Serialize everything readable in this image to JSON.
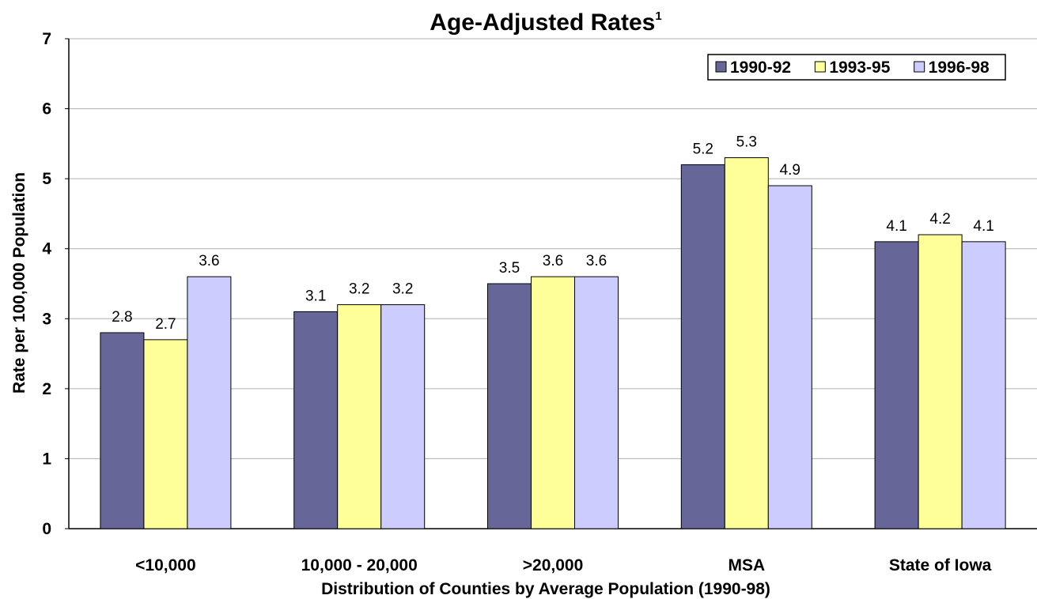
{
  "chart_data": {
    "type": "bar",
    "title": "Age-Adjusted Rates",
    "title_superscript": "1",
    "xlabel": "Distribution of Counties by Average Population (1990-98)",
    "ylabel": "Rate per 100,000 Population",
    "ylim": [
      0,
      7
    ],
    "yticks": [
      "0",
      "1",
      "2",
      "3",
      "4",
      "5",
      "6",
      "7"
    ],
    "grid": "horizontal",
    "legend_position": "top-right",
    "categories": [
      "<10,000",
      "10,000 - 20,000",
      ">20,000",
      "MSA",
      "State of Iowa"
    ],
    "series": [
      {
        "name": "1990-92",
        "color": "#666699",
        "values": [
          2.8,
          3.1,
          3.5,
          5.2,
          4.1
        ]
      },
      {
        "name": "1993-95",
        "color": "#FFFF99",
        "values": [
          2.7,
          3.2,
          3.6,
          5.3,
          4.2
        ]
      },
      {
        "name": "1996-98",
        "color": "#CCCCFF",
        "values": [
          3.6,
          3.2,
          3.6,
          4.9,
          4.1
        ]
      }
    ]
  }
}
